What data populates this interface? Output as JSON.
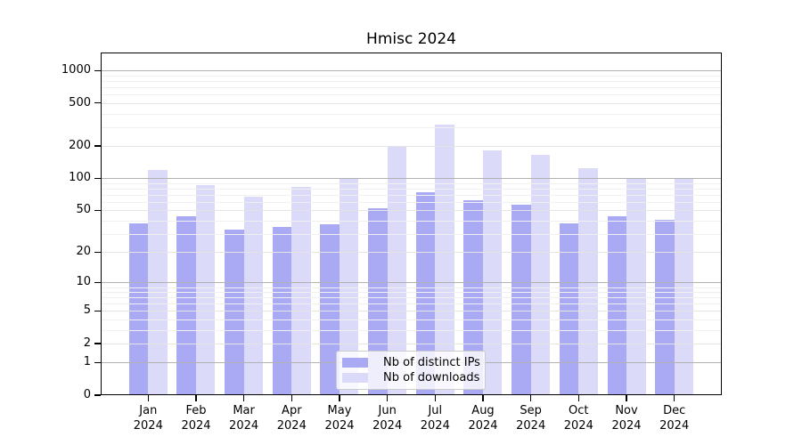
{
  "title": "Hmisc 2024",
  "chart_data": {
    "type": "bar",
    "title": "Hmisc 2024",
    "scale": "log10(1+y)",
    "grid": "on",
    "legend_position": "bottom-center-inside",
    "categories": [
      "Jan",
      "Feb",
      "Mar",
      "Apr",
      "May",
      "Jun",
      "Jul",
      "Aug",
      "Sep",
      "Oct",
      "Nov",
      "Dec"
    ],
    "category_year": "2024",
    "y_ticks": [
      0,
      1,
      2,
      5,
      10,
      20,
      50,
      100,
      200,
      500,
      1000
    ],
    "ylim": [
      0,
      1450
    ],
    "series": [
      {
        "name": "Nb of distinct IPs",
        "color": "#a9a9f4",
        "values": [
          38,
          44,
          33,
          35,
          37,
          52,
          74,
          62,
          57,
          38,
          44,
          41
        ]
      },
      {
        "name": "Nb of downloads",
        "color": "#dbdbf9",
        "values": [
          120,
          87,
          67,
          84,
          100,
          200,
          315,
          182,
          165,
          124,
          98,
          100
        ]
      }
    ]
  },
  "legend": {
    "items": [
      {
        "label": "Nb of distinct IPs",
        "color": "#a9a9f4"
      },
      {
        "label": "Nb of downloads",
        "color": "#dbdbf9"
      }
    ]
  }
}
